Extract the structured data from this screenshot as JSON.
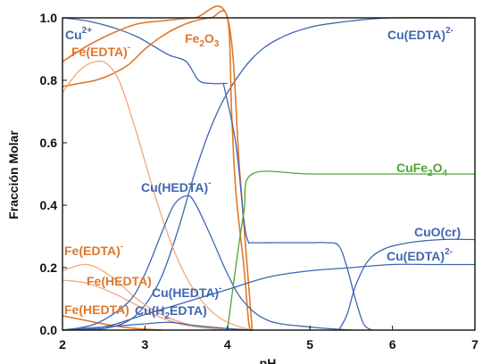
{
  "chart_data": {
    "type": "line",
    "xlabel": "pH",
    "ylabel": "Fracción Molar",
    "xlim": [
      2,
      7
    ],
    "ylim": [
      0,
      1
    ],
    "x_ticks": [
      "2",
      "3",
      "4",
      "5",
      "6",
      "7"
    ],
    "y_ticks": [
      "0.0",
      "0.2",
      "0.4",
      "0.6",
      "0.8",
      "1.0"
    ],
    "grid": false,
    "colors": {
      "copper": "#3f66b3",
      "iron": "#e0782a",
      "iron_light": "#f2a77a",
      "mixed": "#52a335"
    },
    "series": [
      {
        "name": "Cu2+",
        "color": "copper",
        "points": [
          [
            2,
            1.0
          ],
          [
            2.3,
            0.99
          ],
          [
            2.6,
            0.97
          ],
          [
            2.9,
            0.94
          ],
          [
            3.1,
            0.91
          ],
          [
            3.3,
            0.88
          ],
          [
            3.5,
            0.86
          ],
          [
            3.65,
            0.8
          ],
          [
            3.8,
            0.79
          ],
          [
            3.95,
            0.79
          ],
          [
            4.0,
            0.79
          ]
        ]
      },
      {
        "name": "Cu(EDTA)2-",
        "color": "copper",
        "points": [
          [
            2,
            0.0
          ],
          [
            2.5,
            0.005
          ],
          [
            2.8,
            0.03
          ],
          [
            3.0,
            0.08
          ],
          [
            3.2,
            0.17
          ],
          [
            3.4,
            0.32
          ],
          [
            3.6,
            0.5
          ],
          [
            3.8,
            0.65
          ],
          [
            4.0,
            0.76
          ],
          [
            4.3,
            0.87
          ],
          [
            4.6,
            0.93
          ],
          [
            5.0,
            0.97
          ],
          [
            5.5,
            0.99
          ],
          [
            6.0,
            1.0
          ],
          [
            7.0,
            1.0
          ]
        ]
      },
      {
        "name": "Fe2O3",
        "color": "iron",
        "points": [
          [
            2,
            0.86
          ],
          [
            2.3,
            0.91
          ],
          [
            2.6,
            0.95
          ],
          [
            2.9,
            0.98
          ],
          [
            3.2,
            0.99
          ],
          [
            3.6,
            1.0
          ],
          [
            4.0,
            1.0
          ],
          [
            4.15,
            0.5
          ],
          [
            4.3,
            0.0
          ]
        ]
      },
      {
        "name": "Fe(EDTA)-",
        "color": "iron",
        "points": [
          [
            2,
            0.78
          ],
          [
            2.2,
            0.79
          ],
          [
            2.4,
            0.8
          ],
          [
            2.6,
            0.82
          ],
          [
            2.8,
            0.85
          ],
          [
            3.0,
            0.9
          ],
          [
            3.2,
            0.94
          ],
          [
            3.4,
            0.97
          ],
          [
            3.6,
            0.99
          ],
          [
            3.8,
            1.0
          ],
          [
            4.0,
            1.0
          ],
          [
            4.05,
            0.7
          ],
          [
            4.1,
            0.45
          ],
          [
            4.2,
            0.2
          ],
          [
            4.26,
            0.02
          ],
          [
            4.3,
            0.0
          ]
        ]
      },
      {
        "name": "Fe(HEDTA)",
        "color": "iron_light",
        "points": [
          [
            2,
            0.76
          ],
          [
            2.2,
            0.83
          ],
          [
            2.4,
            0.86
          ],
          [
            2.55,
            0.85
          ],
          [
            2.7,
            0.79
          ],
          [
            2.9,
            0.63
          ],
          [
            3.1,
            0.45
          ],
          [
            3.3,
            0.29
          ],
          [
            3.5,
            0.17
          ],
          [
            3.7,
            0.09
          ],
          [
            3.9,
            0.04
          ],
          [
            4.1,
            0.015
          ],
          [
            4.3,
            0.0
          ]
        ]
      },
      {
        "name": "Fe(EDTA)-",
        "color": "iron_light",
        "points": [
          [
            2,
            0.19
          ],
          [
            2.3,
            0.21
          ],
          [
            2.6,
            0.17
          ],
          [
            2.9,
            0.1
          ],
          [
            3.2,
            0.05
          ],
          [
            3.5,
            0.02
          ],
          [
            3.8,
            0.005
          ],
          [
            4.0,
            0.0
          ]
        ]
      },
      {
        "name": "Fe(HEDTA)",
        "color": "iron_light",
        "points": [
          [
            2,
            0.16
          ],
          [
            2.3,
            0.15
          ],
          [
            2.6,
            0.12
          ],
          [
            2.9,
            0.08
          ],
          [
            3.2,
            0.04
          ],
          [
            3.5,
            0.015
          ],
          [
            3.8,
            0.005
          ],
          [
            4.0,
            0.0
          ]
        ]
      },
      {
        "name": "Fe(HEDTA)",
        "color": "iron",
        "points": [
          [
            2,
            0.046
          ],
          [
            2.3,
            0.03
          ],
          [
            2.6,
            0.015
          ],
          [
            2.9,
            0.005
          ],
          [
            3.2,
            0.0
          ]
        ]
      },
      {
        "name": "Cu(HEDTA)-",
        "color": "copper",
        "points": [
          [
            2,
            0.0
          ],
          [
            2.4,
            0.02
          ],
          [
            2.8,
            0.09
          ],
          [
            3.0,
            0.18
          ],
          [
            3.2,
            0.31
          ],
          [
            3.35,
            0.4
          ],
          [
            3.5,
            0.43
          ],
          [
            3.6,
            0.41
          ],
          [
            3.8,
            0.3
          ],
          [
            4.0,
            0.18
          ],
          [
            4.2,
            0.09
          ],
          [
            4.5,
            0.03
          ],
          [
            5.0,
            0.01
          ],
          [
            5.5,
            0.0
          ]
        ]
      },
      {
        "name": "Cu(H2EDTA)",
        "color": "copper",
        "points": [
          [
            2,
            0.0
          ],
          [
            2.5,
            0.01
          ],
          [
            3.0,
            0.02
          ],
          [
            3.3,
            0.025
          ],
          [
            3.6,
            0.015
          ],
          [
            4.0,
            0.005
          ],
          [
            4.3,
            0.0
          ]
        ]
      },
      {
        "name": "Cu(HEDTA)-",
        "color": "copper",
        "points": [
          [
            2,
            0.0
          ],
          [
            2.5,
            0.01
          ],
          [
            3.0,
            0.05
          ],
          [
            3.5,
            0.09
          ],
          [
            4.0,
            0.13
          ],
          [
            4.5,
            0.17
          ],
          [
            5.0,
            0.19
          ],
          [
            5.5,
            0.2
          ],
          [
            6.0,
            0.21
          ],
          [
            6.5,
            0.21
          ],
          [
            7.0,
            0.21
          ]
        ]
      },
      {
        "name": "Cu(EDTA)2-",
        "color": "copper",
        "points": [
          [
            3.95,
            0.79
          ],
          [
            4.1,
            0.6
          ],
          [
            4.2,
            0.35
          ],
          [
            4.25,
            0.285
          ],
          [
            4.3,
            0.28
          ],
          [
            4.6,
            0.28
          ],
          [
            5.0,
            0.28
          ],
          [
            5.2,
            0.28
          ],
          [
            5.35,
            0.27
          ],
          [
            5.45,
            0.2
          ],
          [
            5.55,
            0.1
          ],
          [
            5.65,
            0.02
          ],
          [
            5.75,
            0.0
          ]
        ]
      },
      {
        "name": "CuFe2O4",
        "color": "mixed",
        "points": [
          [
            4.0,
            0.0
          ],
          [
            4.1,
            0.2
          ],
          [
            4.2,
            0.38
          ],
          [
            4.3,
            0.5
          ],
          [
            5.0,
            0.5
          ],
          [
            6.0,
            0.5
          ],
          [
            7.0,
            0.5
          ]
        ]
      },
      {
        "name": "CuO(cr)",
        "color": "copper",
        "points": [
          [
            5.35,
            0.0
          ],
          [
            5.45,
            0.05
          ],
          [
            5.55,
            0.14
          ],
          [
            5.7,
            0.22
          ],
          [
            5.9,
            0.26
          ],
          [
            6.2,
            0.28
          ],
          [
            6.6,
            0.29
          ],
          [
            7.0,
            0.29
          ]
        ]
      }
    ]
  },
  "labels": {
    "cu2": "Cu",
    "cu2_sup": "2+",
    "cuedta_top": "Cu(EDTA)",
    "cuedta_top_sup": "2-",
    "feedta_top": "Fe(EDTA)",
    "feedta_top_sup": "-",
    "fe2o3_main": "Fe",
    "fe2o3_sub1": "2",
    "fe2o3_o": "O",
    "fe2o3_sub2": "3",
    "cuhedta_mid": "Cu(HEDTA)",
    "cuhedta_mid_sup": "-",
    "cufe2o4_main": "CuFe",
    "cufe2o4_sub": "2",
    "cufe2o4_o": "O",
    "cufe2o4_sub2": "4",
    "cuocr": "CuO(cr)",
    "cuedta_low": "Cu(EDTA)",
    "cuedta_low_sup": "2-",
    "feedta_low": "Fe(EDTA)",
    "feedta_low_sup": "-",
    "fehedta_1": "Fe(HEDTA)",
    "cuhedta_low": "Cu(HEDTA)",
    "cuhedta_low_sup": "-",
    "fehedta_2": "Fe(HEDTA)",
    "cuh2edta_a": "Cu(H",
    "cuh2edta_sub": "2",
    "cuh2edta_b": "EDTA)"
  }
}
